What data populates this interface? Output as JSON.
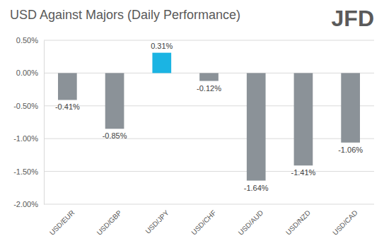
{
  "chart_data": {
    "type": "bar",
    "title": "USD Against Majors (Daily Performance)",
    "logo": "JFD",
    "categories": [
      "USD/EUR",
      "USD/GBP",
      "USD/JPY",
      "USD/CHF",
      "USD/AUD",
      "USD/NZD",
      "USD/CAD"
    ],
    "values": [
      -0.41,
      -0.85,
      0.31,
      -0.12,
      -1.64,
      -1.41,
      -1.06
    ],
    "value_labels": [
      "-0.41%",
      "-0.85%",
      "0.31%",
      "-0.12%",
      "-1.64%",
      "-1.41%",
      "-1.06%"
    ],
    "colors": [
      "#8b9298",
      "#8b9298",
      "#1bb4e3",
      "#8b9298",
      "#8b9298",
      "#8b9298",
      "#8b9298"
    ],
    "ylim": [
      -2,
      0.5
    ],
    "yticks": [
      {
        "value": 0.5,
        "label": "0.50%"
      },
      {
        "value": 0,
        "label": "0.00%"
      },
      {
        "value": -0.5,
        "label": "-0.50%"
      },
      {
        "value": -1,
        "label": "-1.00%"
      },
      {
        "value": -1.5,
        "label": "-1.50%"
      },
      {
        "value": -2,
        "label": "-2.00%"
      }
    ],
    "grid": true,
    "data_labels": true
  }
}
